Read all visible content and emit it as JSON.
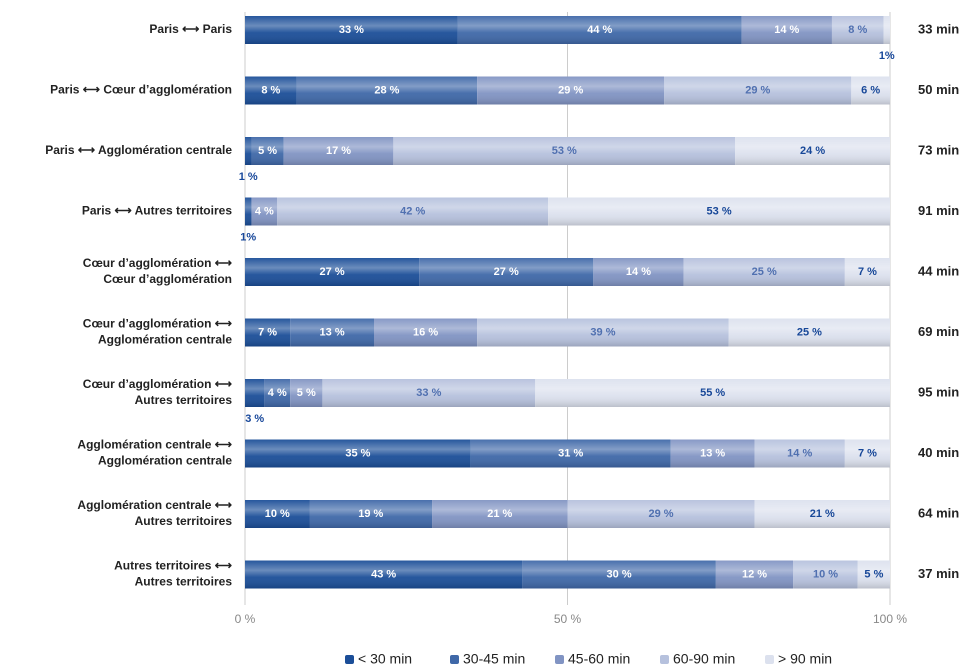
{
  "chart_data": {
    "type": "stacked-bar-horizontal",
    "categories": [
      [
        "Paris ⟷ Paris"
      ],
      [
        "Paris ⟷ Cœur d’agglomération"
      ],
      [
        "Paris ⟷ Agglomération centrale"
      ],
      [
        "Paris ⟷ Autres territoires"
      ],
      [
        "Cœur d’agglomération ⟷",
        "Cœur d’agglomération"
      ],
      [
        "Cœur d’agglomération ⟷",
        "Agglomération centrale"
      ],
      [
        "Cœur d’agglomération ⟷",
        "Autres territoires"
      ],
      [
        "Agglomération centrale ⟷",
        "Agglomération centrale"
      ],
      [
        "Agglomération centrale ⟷",
        "Autres territoires"
      ],
      [
        "Autres territoires ⟷",
        "Autres territoires"
      ]
    ],
    "totals": [
      "33 min",
      "50 min",
      "73 min",
      "91 min",
      "44 min",
      "69 min",
      "95 min",
      "40 min",
      "64 min",
      "37 min"
    ],
    "series": [
      {
        "name": "< 30 min",
        "color": "#1b4e98",
        "label_color": "#ffffff",
        "values": [
          33,
          8,
          1,
          1,
          27,
          7,
          3,
          35,
          10,
          43
        ],
        "value_labels": [
          "33 %",
          "8 %",
          "1 %",
          "1%",
          "27 %",
          "7 %",
          "3 %",
          "35 %",
          "10 %",
          "43 %"
        ]
      },
      {
        "name": "30-45 min",
        "color": "#3f68a8",
        "label_color": "#ffffff",
        "values": [
          44,
          28,
          5,
          null,
          27,
          13,
          4,
          31,
          19,
          30
        ],
        "value_labels": [
          "44 %",
          "28 %",
          "5 %",
          null,
          "27 %",
          "13 %",
          "4 %",
          "31 %",
          "19 %",
          "30 %"
        ]
      },
      {
        "name": "45-60 min",
        "color": "#8194c3",
        "label_color": "#ffffff",
        "values": [
          14,
          29,
          17,
          4,
          14,
          16,
          5,
          13,
          21,
          12
        ],
        "value_labels": [
          "14 %",
          "29 %",
          "17 %",
          "4 %",
          "14 %",
          "16 %",
          "5 %",
          "13 %",
          "21 %",
          "12 %"
        ]
      },
      {
        "name": "60-90 min",
        "color": "#b6c1dd",
        "label_color": "#5070b0",
        "values": [
          8,
          29,
          53,
          42,
          25,
          39,
          33,
          14,
          29,
          10
        ],
        "value_labels": [
          "8 %",
          "29 %",
          "53 %",
          "42 %",
          "25 %",
          "39 %",
          "33 %",
          "14 %",
          "29 %",
          "10 %"
        ]
      },
      {
        "name": "> 90 min",
        "color": "#dce1ee",
        "label_color": "#174798",
        "values": [
          1,
          6,
          24,
          53,
          7,
          25,
          55,
          7,
          21,
          5
        ],
        "value_labels": [
          "1%",
          "6 %",
          "24 %",
          "53 %",
          "7 %",
          "25 %",
          "55 %",
          "7 %",
          "21 %",
          "5 %"
        ]
      }
    ],
    "xlim": [
      0,
      100
    ],
    "xticks": [
      {
        "value": 0,
        "label": "0 %"
      },
      {
        "value": 50,
        "label": "50 %"
      },
      {
        "value": 100,
        "label": "100 %"
      }
    ],
    "grid": true,
    "legend": "bottom"
  }
}
